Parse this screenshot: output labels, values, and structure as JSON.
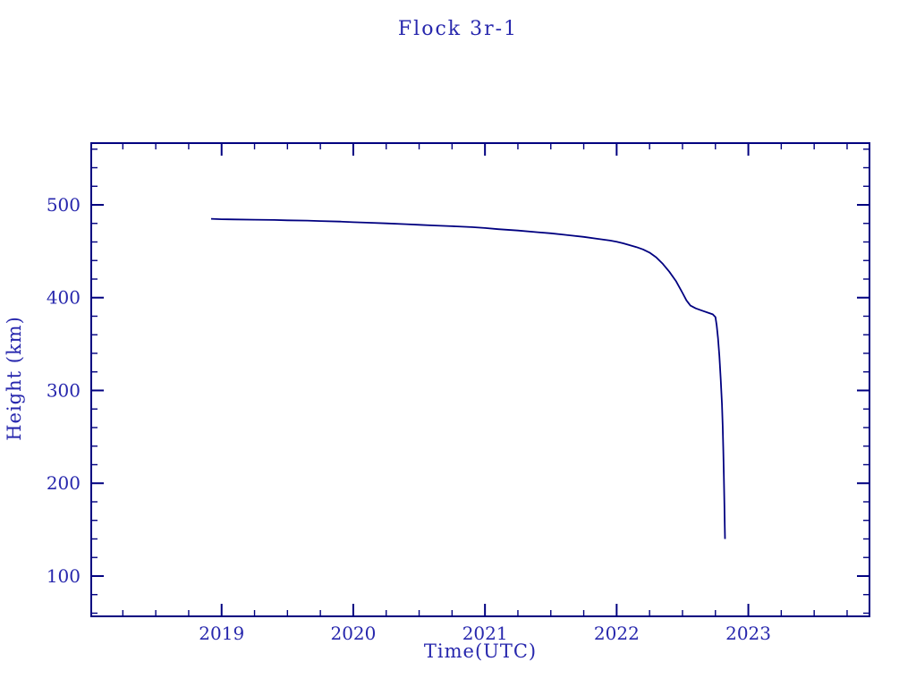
{
  "page": {
    "background": "#ffffff"
  },
  "chart_data": {
    "type": "line",
    "title": "Flock 3r-1",
    "xlabel": "Time(UTC)",
    "ylabel": "Height (km)",
    "x_ticks": [
      2019,
      2020,
      2021,
      2022,
      2023
    ],
    "x_minor_interval": 0.25,
    "y_ticks": [
      100,
      200,
      300,
      400,
      500
    ],
    "y_minor_interval": 20,
    "xlim": [
      2018.01,
      2023.92
    ],
    "ylim": [
      56.6,
      566.5
    ],
    "grid": false,
    "legend": "none",
    "axis_color": "#000080",
    "line_color": "#000080",
    "text_color": "#2727ad",
    "series": [
      {
        "name": "Flock 3r-1",
        "points": [
          [
            2018.92,
            485
          ],
          [
            2019.0,
            484.5
          ],
          [
            2019.1,
            484.3
          ],
          [
            2019.25,
            484.0
          ],
          [
            2019.4,
            483.7
          ],
          [
            2019.5,
            483.3
          ],
          [
            2019.65,
            483.0
          ],
          [
            2019.75,
            482.5
          ],
          [
            2019.9,
            482.0
          ],
          [
            2020.0,
            481.3
          ],
          [
            2020.1,
            480.8
          ],
          [
            2020.25,
            480.0
          ],
          [
            2020.4,
            479.2
          ],
          [
            2020.5,
            478.5
          ],
          [
            2020.6,
            477.8
          ],
          [
            2020.75,
            477.0
          ],
          [
            2020.9,
            476.0
          ],
          [
            2021.0,
            475.0
          ],
          [
            2021.1,
            473.8
          ],
          [
            2021.25,
            472.3
          ],
          [
            2021.4,
            470.5
          ],
          [
            2021.5,
            469.3
          ],
          [
            2021.6,
            467.8
          ],
          [
            2021.75,
            465.5
          ],
          [
            2021.85,
            463.5
          ],
          [
            2021.95,
            461.5
          ],
          [
            2022.0,
            460.3
          ],
          [
            2022.05,
            458.5
          ],
          [
            2022.1,
            456.5
          ],
          [
            2022.15,
            454.5
          ],
          [
            2022.2,
            452.0
          ],
          [
            2022.25,
            448.5
          ],
          [
            2022.3,
            443.5
          ],
          [
            2022.35,
            436.5
          ],
          [
            2022.4,
            428.0
          ],
          [
            2022.45,
            418.0
          ],
          [
            2022.5,
            405.0
          ],
          [
            2022.53,
            397.0
          ],
          [
            2022.56,
            391.5
          ],
          [
            2022.6,
            388.5
          ],
          [
            2022.65,
            386.0
          ],
          [
            2022.7,
            383.5
          ],
          [
            2022.73,
            382.0
          ],
          [
            2022.75,
            379.0
          ],
          [
            2022.76,
            370.0
          ],
          [
            2022.77,
            356.0
          ],
          [
            2022.78,
            337.0
          ],
          [
            2022.79,
            312.0
          ],
          [
            2022.8,
            285.0
          ],
          [
            2022.805,
            262.0
          ],
          [
            2022.81,
            235.0
          ],
          [
            2022.814,
            208.0
          ],
          [
            2022.818,
            178.0
          ],
          [
            2022.821,
            155.0
          ],
          [
            2022.823,
            140.0
          ]
        ]
      }
    ]
  }
}
